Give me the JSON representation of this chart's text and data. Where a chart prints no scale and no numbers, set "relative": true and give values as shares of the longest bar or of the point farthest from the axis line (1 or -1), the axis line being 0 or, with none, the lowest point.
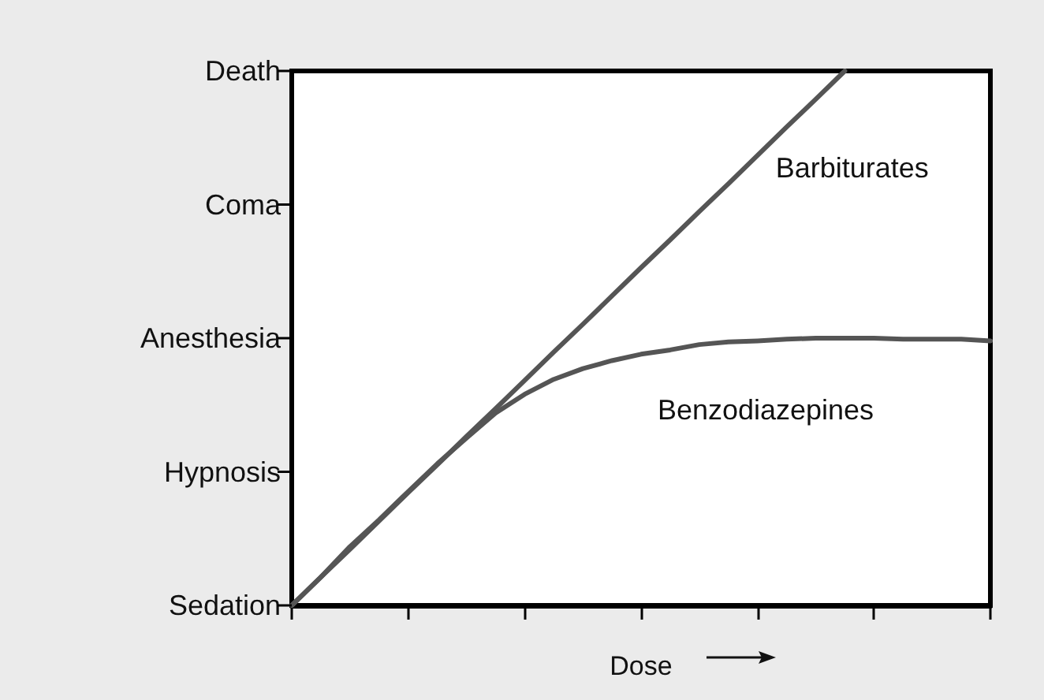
{
  "chart_data": {
    "type": "line",
    "xlabel": "Dose",
    "relative": true,
    "annotations": [
      "Sedation",
      "Hypnosis",
      "Anesthesia",
      "Coma",
      "Death"
    ],
    "categories": [
      null,
      null,
      null,
      null,
      null,
      null,
      null,
      null,
      null,
      null,
      null,
      null,
      null,
      null,
      null,
      null,
      null,
      null,
      null,
      null,
      null,
      null,
      null,
      null,
      null
    ],
    "series": [
      {
        "name": "Barbiturates",
        "color": "#555555",
        "values": [
          0,
          0.053,
          0.105,
          0.158,
          0.211,
          0.263,
          0.316,
          0.368,
          0.421,
          0.474,
          0.526,
          0.579,
          0.632,
          0.684,
          0.737,
          0.789,
          0.842,
          0.895,
          0.947,
          1.0,
          null,
          null,
          null,
          null,
          null
        ]
      },
      {
        "name": "Benzodiazepines",
        "color": "#555555",
        "values": [
          0,
          0.053,
          0.11,
          0.16,
          0.213,
          0.265,
          0.313,
          0.36,
          0.395,
          0.423,
          0.443,
          0.458,
          0.47,
          0.478,
          0.488,
          0.493,
          0.495,
          0.498,
          0.5,
          0.5,
          0.5,
          0.498,
          0.498,
          0.498,
          0.495
        ]
      }
    ],
    "grid": false,
    "legend": false,
    "marker": "none",
    "line_style": "solid"
  }
}
